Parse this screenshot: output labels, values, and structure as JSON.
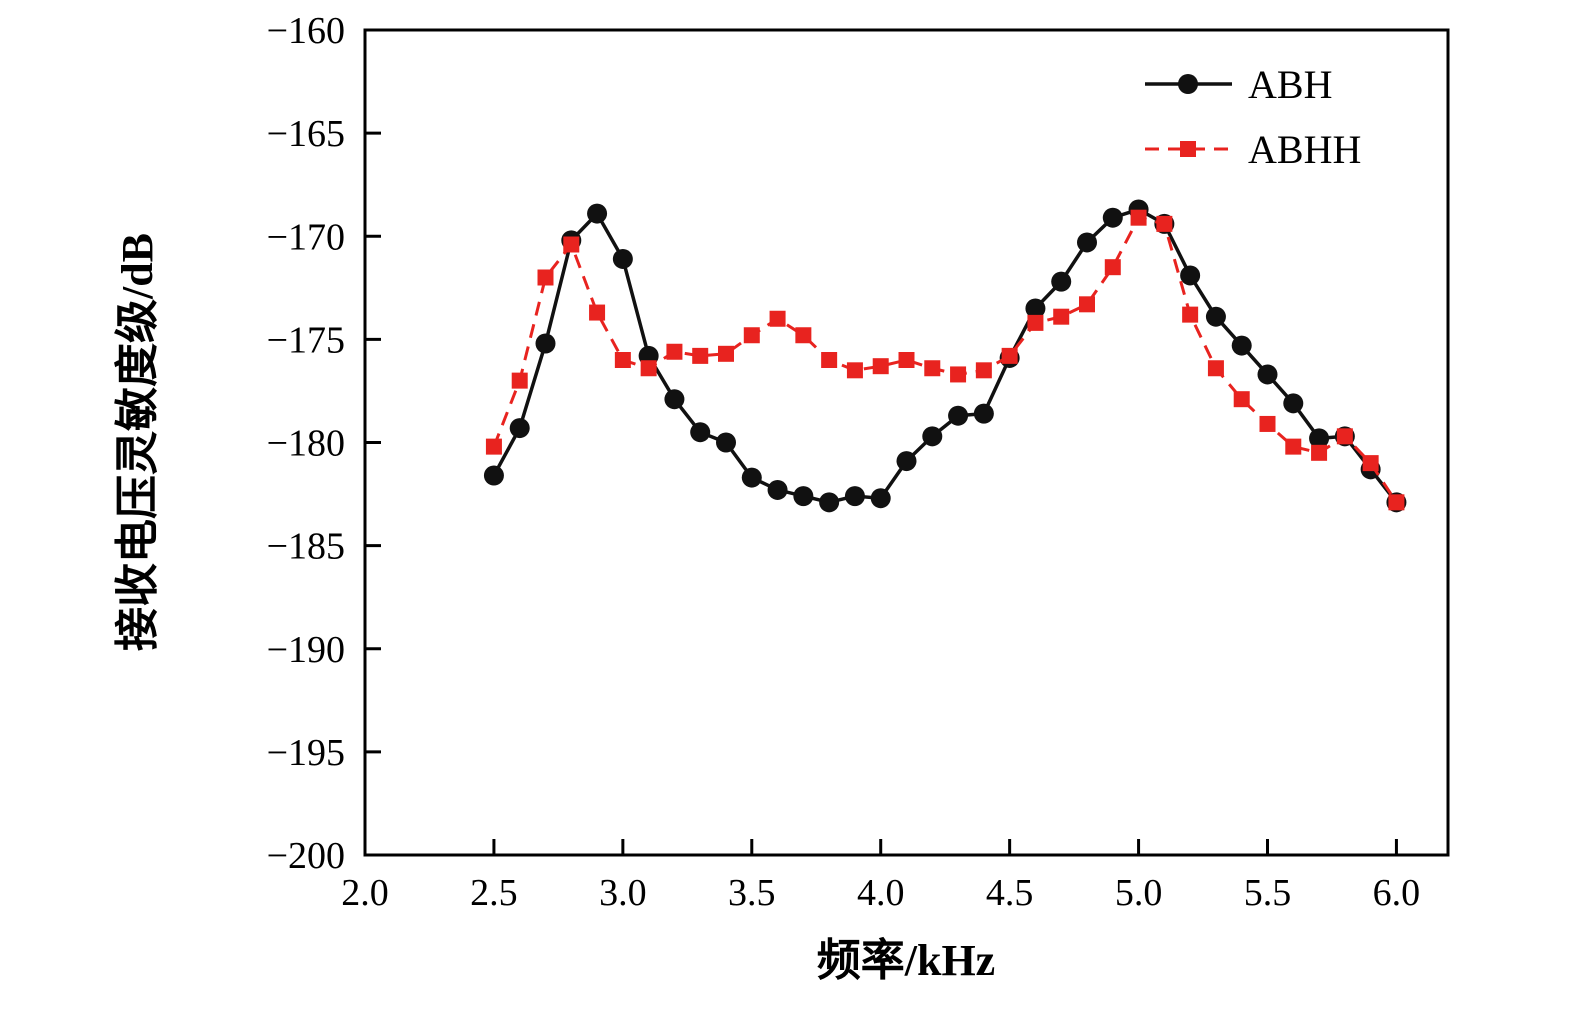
{
  "chart_data": {
    "type": "line",
    "title": "",
    "xlabel": "频率/kHz",
    "ylabel": "接收电压灵敏度级/dB",
    "xlim": [
      2.0,
      6.2
    ],
    "ylim": [
      -200,
      -160
    ],
    "grid": false,
    "legend_position": "top-right",
    "xticks": {
      "values": [
        2.0,
        2.5,
        3.0,
        3.5,
        4.0,
        4.5,
        5.0,
        5.5,
        6.0
      ],
      "labels": [
        "2.0",
        "2.5",
        "3.0",
        "3.5",
        "4.0",
        "4.5",
        "5.0",
        "5.5",
        "6.0"
      ]
    },
    "yticks": {
      "values": [
        -160,
        -165,
        -170,
        -175,
        -180,
        -185,
        -190,
        -195,
        -200
      ],
      "labels": [
        "−160",
        "−165",
        "−170",
        "−175",
        "−180",
        "−185",
        "−190",
        "−195",
        "−200"
      ]
    },
    "x": [
      2.5,
      2.6,
      2.7,
      2.8,
      2.9,
      3.0,
      3.1,
      3.2,
      3.3,
      3.4,
      3.5,
      3.6,
      3.7,
      3.8,
      3.9,
      4.0,
      4.1,
      4.2,
      4.3,
      4.4,
      4.5,
      4.6,
      4.7,
      4.8,
      4.9,
      5.0,
      5.1,
      5.2,
      5.3,
      5.4,
      5.5,
      5.6,
      5.7,
      5.8,
      5.9,
      6.0
    ],
    "series": [
      {
        "name": "ABH",
        "color": "#111111",
        "marker": "circle",
        "line_style": "solid",
        "values": [
          -181.6,
          -179.3,
          -175.2,
          -170.2,
          -168.9,
          -171.1,
          -175.8,
          -177.9,
          -179.5,
          -180.0,
          -181.7,
          -182.3,
          -182.6,
          -182.9,
          -182.6,
          -182.7,
          -180.9,
          -179.7,
          -178.7,
          -178.6,
          -175.9,
          -173.5,
          -172.2,
          -170.3,
          -169.1,
          -168.7,
          -169.4,
          -171.9,
          -173.9,
          -175.3,
          -176.7,
          -178.1,
          -179.8,
          -179.7,
          -181.3,
          -182.9
        ]
      },
      {
        "name": "ABHH",
        "color": "#e8231f",
        "marker": "square",
        "line_style": "dashed",
        "values": [
          -180.2,
          -177.0,
          -172.0,
          -170.4,
          -173.7,
          -176.0,
          -176.4,
          -175.6,
          -175.8,
          -175.7,
          -174.8,
          -174.0,
          -174.8,
          -176.0,
          -176.5,
          -176.3,
          -176.0,
          -176.4,
          -176.7,
          -176.5,
          -175.8,
          -174.2,
          -173.9,
          -173.3,
          -171.5,
          -169.1,
          -169.4,
          -173.8,
          -176.4,
          -177.9,
          -179.1,
          -180.2,
          -180.5,
          -179.7,
          -181.0,
          -182.9
        ]
      }
    ]
  }
}
